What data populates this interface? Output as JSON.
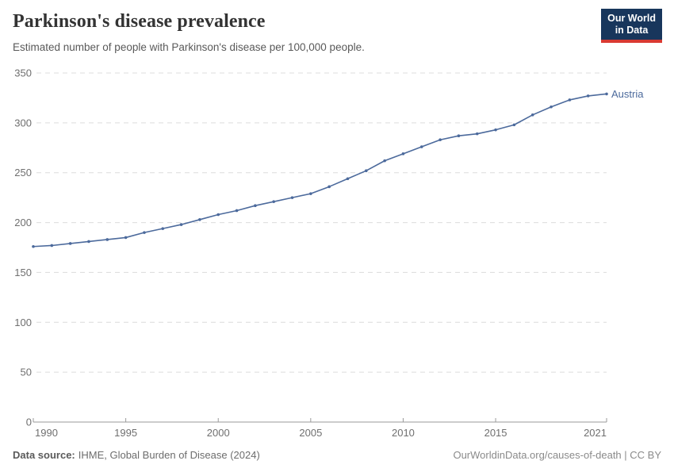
{
  "header": {
    "title": "Parkinson's disease prevalence",
    "subtitle": "Estimated number of people with Parkinson's disease per 100,000 people.",
    "logo": {
      "line1": "Our World",
      "line2": "in Data"
    }
  },
  "chart_data": {
    "type": "line",
    "title": "Parkinson's disease prevalence",
    "x": [
      1990,
      1991,
      1992,
      1993,
      1994,
      1995,
      1996,
      1997,
      1998,
      1999,
      2000,
      2001,
      2002,
      2003,
      2004,
      2005,
      2006,
      2007,
      2008,
      2009,
      2010,
      2011,
      2012,
      2013,
      2014,
      2015,
      2016,
      2017,
      2018,
      2019,
      2020,
      2021
    ],
    "series": [
      {
        "name": "Austria",
        "values": [
          176,
          177,
          179,
          181,
          183,
          185,
          190,
          194,
          198,
          203,
          208,
          212,
          217,
          221,
          225,
          229,
          236,
          244,
          252,
          262,
          269,
          276,
          283,
          287,
          289,
          293,
          298,
          308,
          316,
          323,
          327,
          329
        ]
      }
    ],
    "xlabel": "",
    "ylabel": "",
    "ylim": [
      0,
      350
    ],
    "yticks": [
      0,
      50,
      100,
      150,
      200,
      250,
      300,
      350
    ],
    "xticks": [
      1990,
      1995,
      2000,
      2005,
      2010,
      2015,
      2021
    ],
    "grid": "horizontal-dashed",
    "legend_position": "end-of-line-label"
  },
  "footer": {
    "datasource_label": "Data source:",
    "datasource_value": "IHME, Global Burden of Disease (2024)",
    "credit": "OurWorldinData.org/causes-of-death | CC BY"
  },
  "colors": {
    "line": "#4c6a9c",
    "series_label": "#4c6a9c",
    "grid": "#dcdcdc",
    "axis": "#9a9a9a",
    "tick_label": "#6f6f6f",
    "logo_bg": "#18365c",
    "logo_accent": "#d93a32"
  }
}
